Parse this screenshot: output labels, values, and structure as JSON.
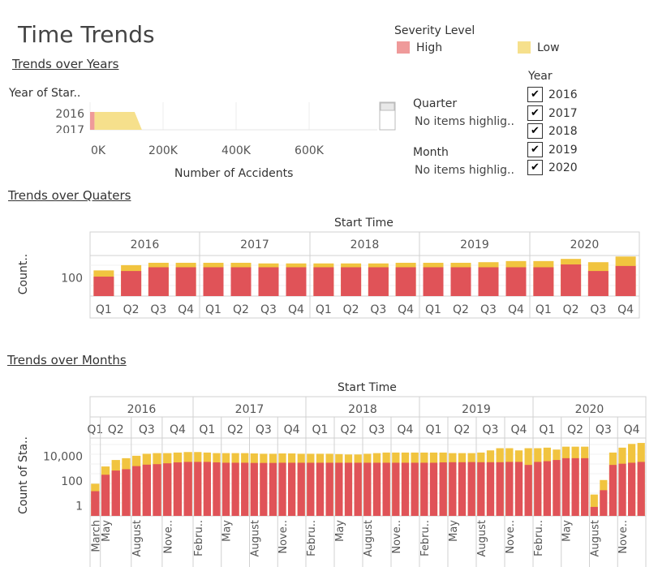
{
  "page": {
    "title": "Time Trends"
  },
  "legend": {
    "title": "Severity Level",
    "items": [
      {
        "label": "High",
        "color": "#ef9a9a"
      },
      {
        "label": "Low",
        "color": "#f6e08c"
      }
    ]
  },
  "filters": {
    "year_title": "Year",
    "years": [
      {
        "label": "2016",
        "checked": true
      },
      {
        "label": "2017",
        "checked": true
      },
      {
        "label": "2018",
        "checked": true
      },
      {
        "label": "2019",
        "checked": true
      },
      {
        "label": "2020",
        "checked": true
      }
    ],
    "quarter_title": "Quarter",
    "quarter_note": "No items highlig..",
    "month_title": "Month",
    "month_note": "No items highlig.."
  },
  "colors": {
    "high": "#e05358",
    "low": "#f1c43f",
    "high_light": "#ef9a9a",
    "low_light": "#f6e08c"
  },
  "chart_data": [
    {
      "type": "bar",
      "title": "Trends over Years",
      "orientation": "horizontal",
      "stacked": true,
      "ylabel": "Year of Star..",
      "xlabel": "Number of Accidents",
      "categories": [
        "2016",
        "2017"
      ],
      "x_ticks": [
        "0K",
        "200K",
        "400K",
        "600K"
      ],
      "xlim": [
        0,
        800000
      ],
      "series": [
        {
          "name": "High",
          "values": [
            12000,
            12000
          ]
        },
        {
          "name": "Low",
          "values": [
            110000,
            130000
          ]
        }
      ]
    },
    {
      "type": "bar",
      "title": "Trends over Quaters",
      "stacked": true,
      "header": "Start Time",
      "ylabel": "Count..",
      "y_scale": "log",
      "y_ticks": [
        {
          "value": 100,
          "label": "100"
        }
      ],
      "ylim": [
        20,
        700
      ],
      "groups": [
        "2016",
        "2017",
        "2018",
        "2019",
        "2020"
      ],
      "categories": [
        "Q1",
        "Q2",
        "Q3",
        "Q4"
      ],
      "series": [
        {
          "name": "High",
          "values": [
            [
              110,
              180,
              250,
              250
            ],
            [
              250,
              250,
              250,
              250
            ],
            [
              250,
              250,
              250,
              250
            ],
            [
              250,
              250,
              250,
              250
            ],
            [
              250,
              320,
              180,
              280
            ]
          ]
        },
        {
          "name": "Low",
          "values": [
            [
              190,
              300,
              370,
              370
            ],
            [
              370,
              370,
              350,
              350
            ],
            [
              350,
              350,
              350,
              370
            ],
            [
              370,
              370,
              390,
              430
            ],
            [
              430,
              520,
              390,
              640
            ]
          ]
        }
      ]
    },
    {
      "type": "bar",
      "title": "Trends over Months",
      "stacked": true,
      "header": "Start Time",
      "ylabel": "Count of Sta..",
      "y_scale": "log",
      "y_ticks": [
        {
          "value": 10000,
          "label": "10,000"
        },
        {
          "value": 100,
          "label": "100"
        },
        {
          "value": 1,
          "label": "1"
        }
      ],
      "ylim": [
        0.15,
        300000
      ],
      "groups": [
        "2016",
        "2017",
        "2018",
        "2019",
        "2020"
      ],
      "quarters": [
        "Q1",
        "Q2",
        "Q3",
        "Q4"
      ],
      "month_labels": [
        [
          "March",
          "May",
          "August",
          "Nove.."
        ],
        [
          "Febru..",
          "May",
          "August",
          "Nove.."
        ],
        [
          "Febru..",
          "May",
          "August",
          "Nove.."
        ],
        [
          "Febru..",
          "May",
          "August",
          "Nove.."
        ],
        [
          "Febru..",
          "May",
          "August",
          "Nove.."
        ]
      ],
      "months_per_quarter": [
        [
          1,
          3,
          3,
          3
        ],
        [
          3,
          3,
          3,
          3
        ],
        [
          3,
          3,
          3,
          3
        ],
        [
          3,
          3,
          3,
          3
        ],
        [
          3,
          3,
          3,
          3
        ]
      ],
      "series": [
        {
          "name": "High",
          "values": [
            [
              15,
              320,
              700,
              900,
              1600,
              2100,
              2300,
              2700,
              3200,
              3500
            ],
            [
              3500,
              3500,
              3200,
              3000,
              3000,
              3000,
              2900,
              2900,
              2900,
              3000,
              3000,
              3000
            ],
            [
              3000,
              3000,
              3000,
              3000,
              3000,
              3000,
              3000,
              3000,
              3000,
              3000,
              3000,
              3000
            ],
            [
              3000,
              3000,
              3200,
              3300,
              3300,
              3400,
              3300,
              3300,
              3300,
              3500,
              3500,
              2000
            ],
            [
              3500,
              4000,
              5000,
              7000,
              7000,
              7000,
              0.8,
              18,
              2000,
              2500,
              3000,
              3500
            ]
          ]
        },
        {
          "name": "Low",
          "values": [
            [
              60,
              1500,
              5000,
              7000,
              11000,
              16000,
              18000,
              18000,
              20000,
              22000
            ],
            [
              22000,
              20000,
              18000,
              18000,
              18000,
              18000,
              17000,
              16000,
              16000,
              17000,
              17000,
              16000
            ],
            [
              16000,
              16000,
              16000,
              15000,
              14000,
              14000,
              16000,
              18000,
              20000,
              20000,
              20000,
              20000
            ],
            [
              20000,
              20000,
              20000,
              18000,
              18000,
              18000,
              20000,
              30000,
              45000,
              45000,
              30000,
              45000
            ],
            [
              45000,
              50000,
              35000,
              60000,
              60000,
              60000,
              8,
              120,
              20000,
              50000,
              100000,
              120000
            ]
          ]
        }
      ]
    }
  ]
}
